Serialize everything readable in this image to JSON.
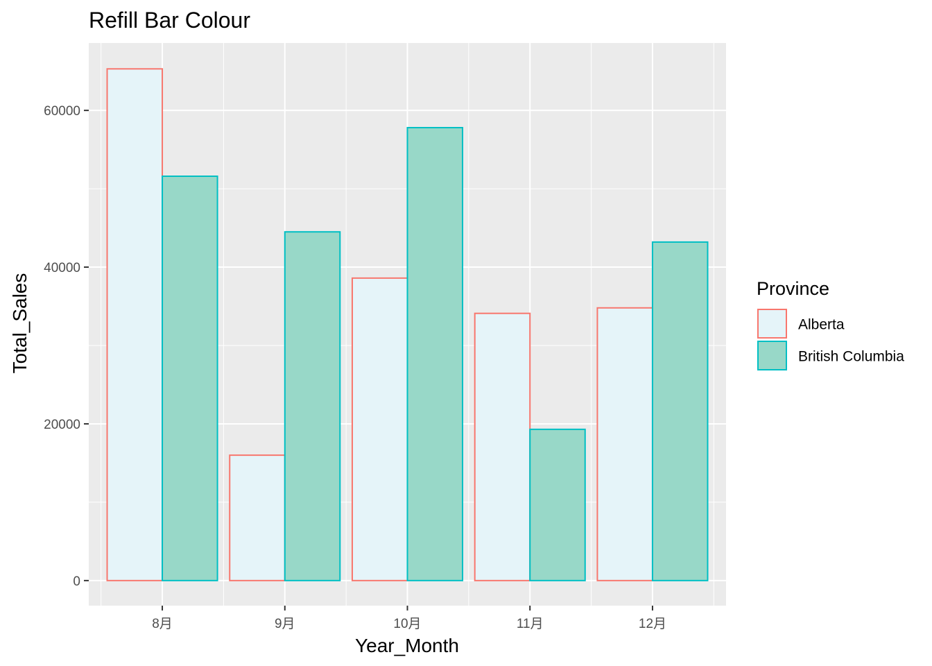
{
  "chart_data": {
    "type": "bar",
    "title": "Refill Bar Colour",
    "xlabel": "Year_Month",
    "ylabel": "Total_Sales",
    "categories": [
      "8月",
      "9月",
      "10月",
      "11月",
      "12月"
    ],
    "series": [
      {
        "name": "Alberta",
        "values": [
          65300,
          16000,
          38600,
          34100,
          34800
        ],
        "outline": "#F8766D",
        "fill": "#E5F4F9"
      },
      {
        "name": "British Columbia",
        "values": [
          51600,
          44500,
          57800,
          19300,
          43200
        ],
        "outline": "#00BFC4",
        "fill": "#98D8C8"
      }
    ],
    "ylim": [
      -3200,
      68600
    ],
    "yticks": [
      0,
      20000,
      40000,
      60000
    ],
    "grid": true,
    "panel_background": "#EBEBEB",
    "legend": {
      "title": "Province",
      "position": "right"
    }
  }
}
